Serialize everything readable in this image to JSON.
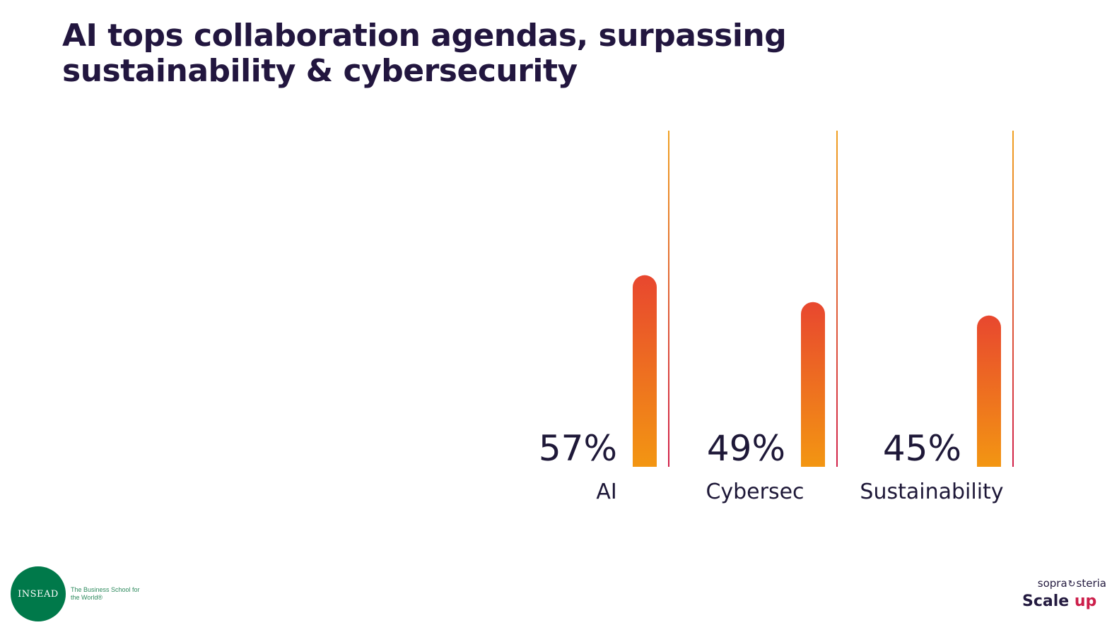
{
  "slide": {
    "title_line1": "AI tops collaboration agendas, surpassing",
    "title_line2": "sustainability & cybersecurity"
  },
  "chart_data": {
    "type": "bar",
    "title": "AI tops collaboration agendas, surpassing sustainability & cybersecurity",
    "categories": [
      "AI",
      "Cybersec",
      "Sustainability"
    ],
    "values": [
      57,
      49,
      45
    ],
    "value_labels": [
      "57%",
      "49%",
      "45%"
    ],
    "unit": "%",
    "ylim": [
      0,
      100
    ],
    "grid": false,
    "colors": {
      "bar_top": "#e8472f",
      "bar_bottom": "#f39612",
      "rule_top": "#f0a020",
      "rule_bottom": "#d11f48",
      "text": "#1e1838"
    }
  },
  "logos": {
    "insead": {
      "name": "INSEAD",
      "tagline": "The Business School for the World®",
      "color": "#00794a"
    },
    "sopra": {
      "brand_left": "sopra",
      "brand_right": "steria",
      "scale": "Scale",
      "up": "up",
      "up_color": "#cc1e4a"
    }
  }
}
